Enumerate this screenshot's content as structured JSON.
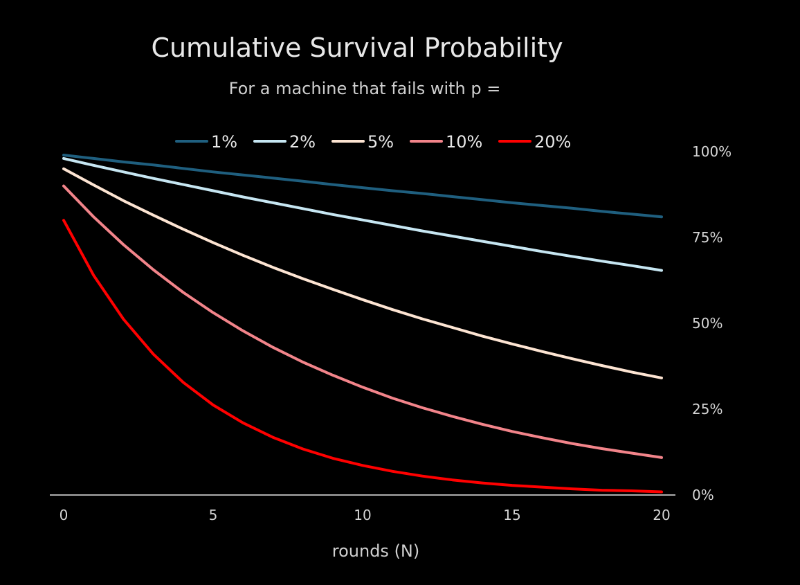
{
  "chart_data": {
    "type": "line",
    "title": "Cumulative Survival Probability",
    "subtitle": "For a machine that fails with p =",
    "xlabel": "rounds (N)",
    "ylabel": "",
    "xlim": [
      0,
      20
    ],
    "ylim": [
      0,
      1
    ],
    "x_ticks": [
      0,
      5,
      10,
      15,
      20
    ],
    "x_tick_labels": [
      "0",
      "5",
      "10",
      "15",
      "20"
    ],
    "y_ticks": [
      0,
      0.25,
      0.5,
      0.75,
      1
    ],
    "y_tick_labels": [
      "0%",
      "25%",
      "50%",
      "75%",
      "100%"
    ],
    "y_axis_position": "right",
    "grid": false,
    "legend_position": "top",
    "x": [
      0,
      1,
      2,
      3,
      4,
      5,
      6,
      7,
      8,
      9,
      10,
      11,
      12,
      13,
      14,
      15,
      16,
      17,
      18,
      19,
      20
    ],
    "series": [
      {
        "name": "1%",
        "color": "#1f5f7f",
        "values": [
          0.99,
          0.98,
          0.97,
          0.961,
          0.951,
          0.941,
          0.932,
          0.923,
          0.914,
          0.904,
          0.895,
          0.886,
          0.878,
          0.869,
          0.86,
          0.851,
          0.843,
          0.835,
          0.826,
          0.818,
          0.81
        ]
      },
      {
        "name": "2%",
        "color": "#c6e6f2",
        "values": [
          0.98,
          0.96,
          0.941,
          0.922,
          0.904,
          0.886,
          0.868,
          0.851,
          0.834,
          0.817,
          0.801,
          0.785,
          0.769,
          0.754,
          0.739,
          0.724,
          0.709,
          0.695,
          0.681,
          0.668,
          0.654
        ]
      },
      {
        "name": "5%",
        "color": "#fde4d2",
        "values": [
          0.95,
          0.903,
          0.857,
          0.815,
          0.774,
          0.735,
          0.698,
          0.663,
          0.63,
          0.599,
          0.569,
          0.54,
          0.513,
          0.488,
          0.463,
          0.44,
          0.418,
          0.397,
          0.377,
          0.358,
          0.341
        ]
      },
      {
        "name": "10%",
        "color": "#f2848a",
        "values": [
          0.9,
          0.81,
          0.729,
          0.656,
          0.59,
          0.531,
          0.478,
          0.43,
          0.387,
          0.349,
          0.314,
          0.282,
          0.254,
          0.229,
          0.206,
          0.185,
          0.167,
          0.15,
          0.135,
          0.122,
          0.109
        ]
      },
      {
        "name": "20%",
        "color": "#ff0000",
        "values": [
          0.8,
          0.64,
          0.512,
          0.41,
          0.328,
          0.262,
          0.21,
          0.168,
          0.134,
          0.107,
          0.086,
          0.069,
          0.055,
          0.044,
          0.035,
          0.028,
          0.023,
          0.018,
          0.014,
          0.012,
          0.009
        ]
      }
    ]
  }
}
